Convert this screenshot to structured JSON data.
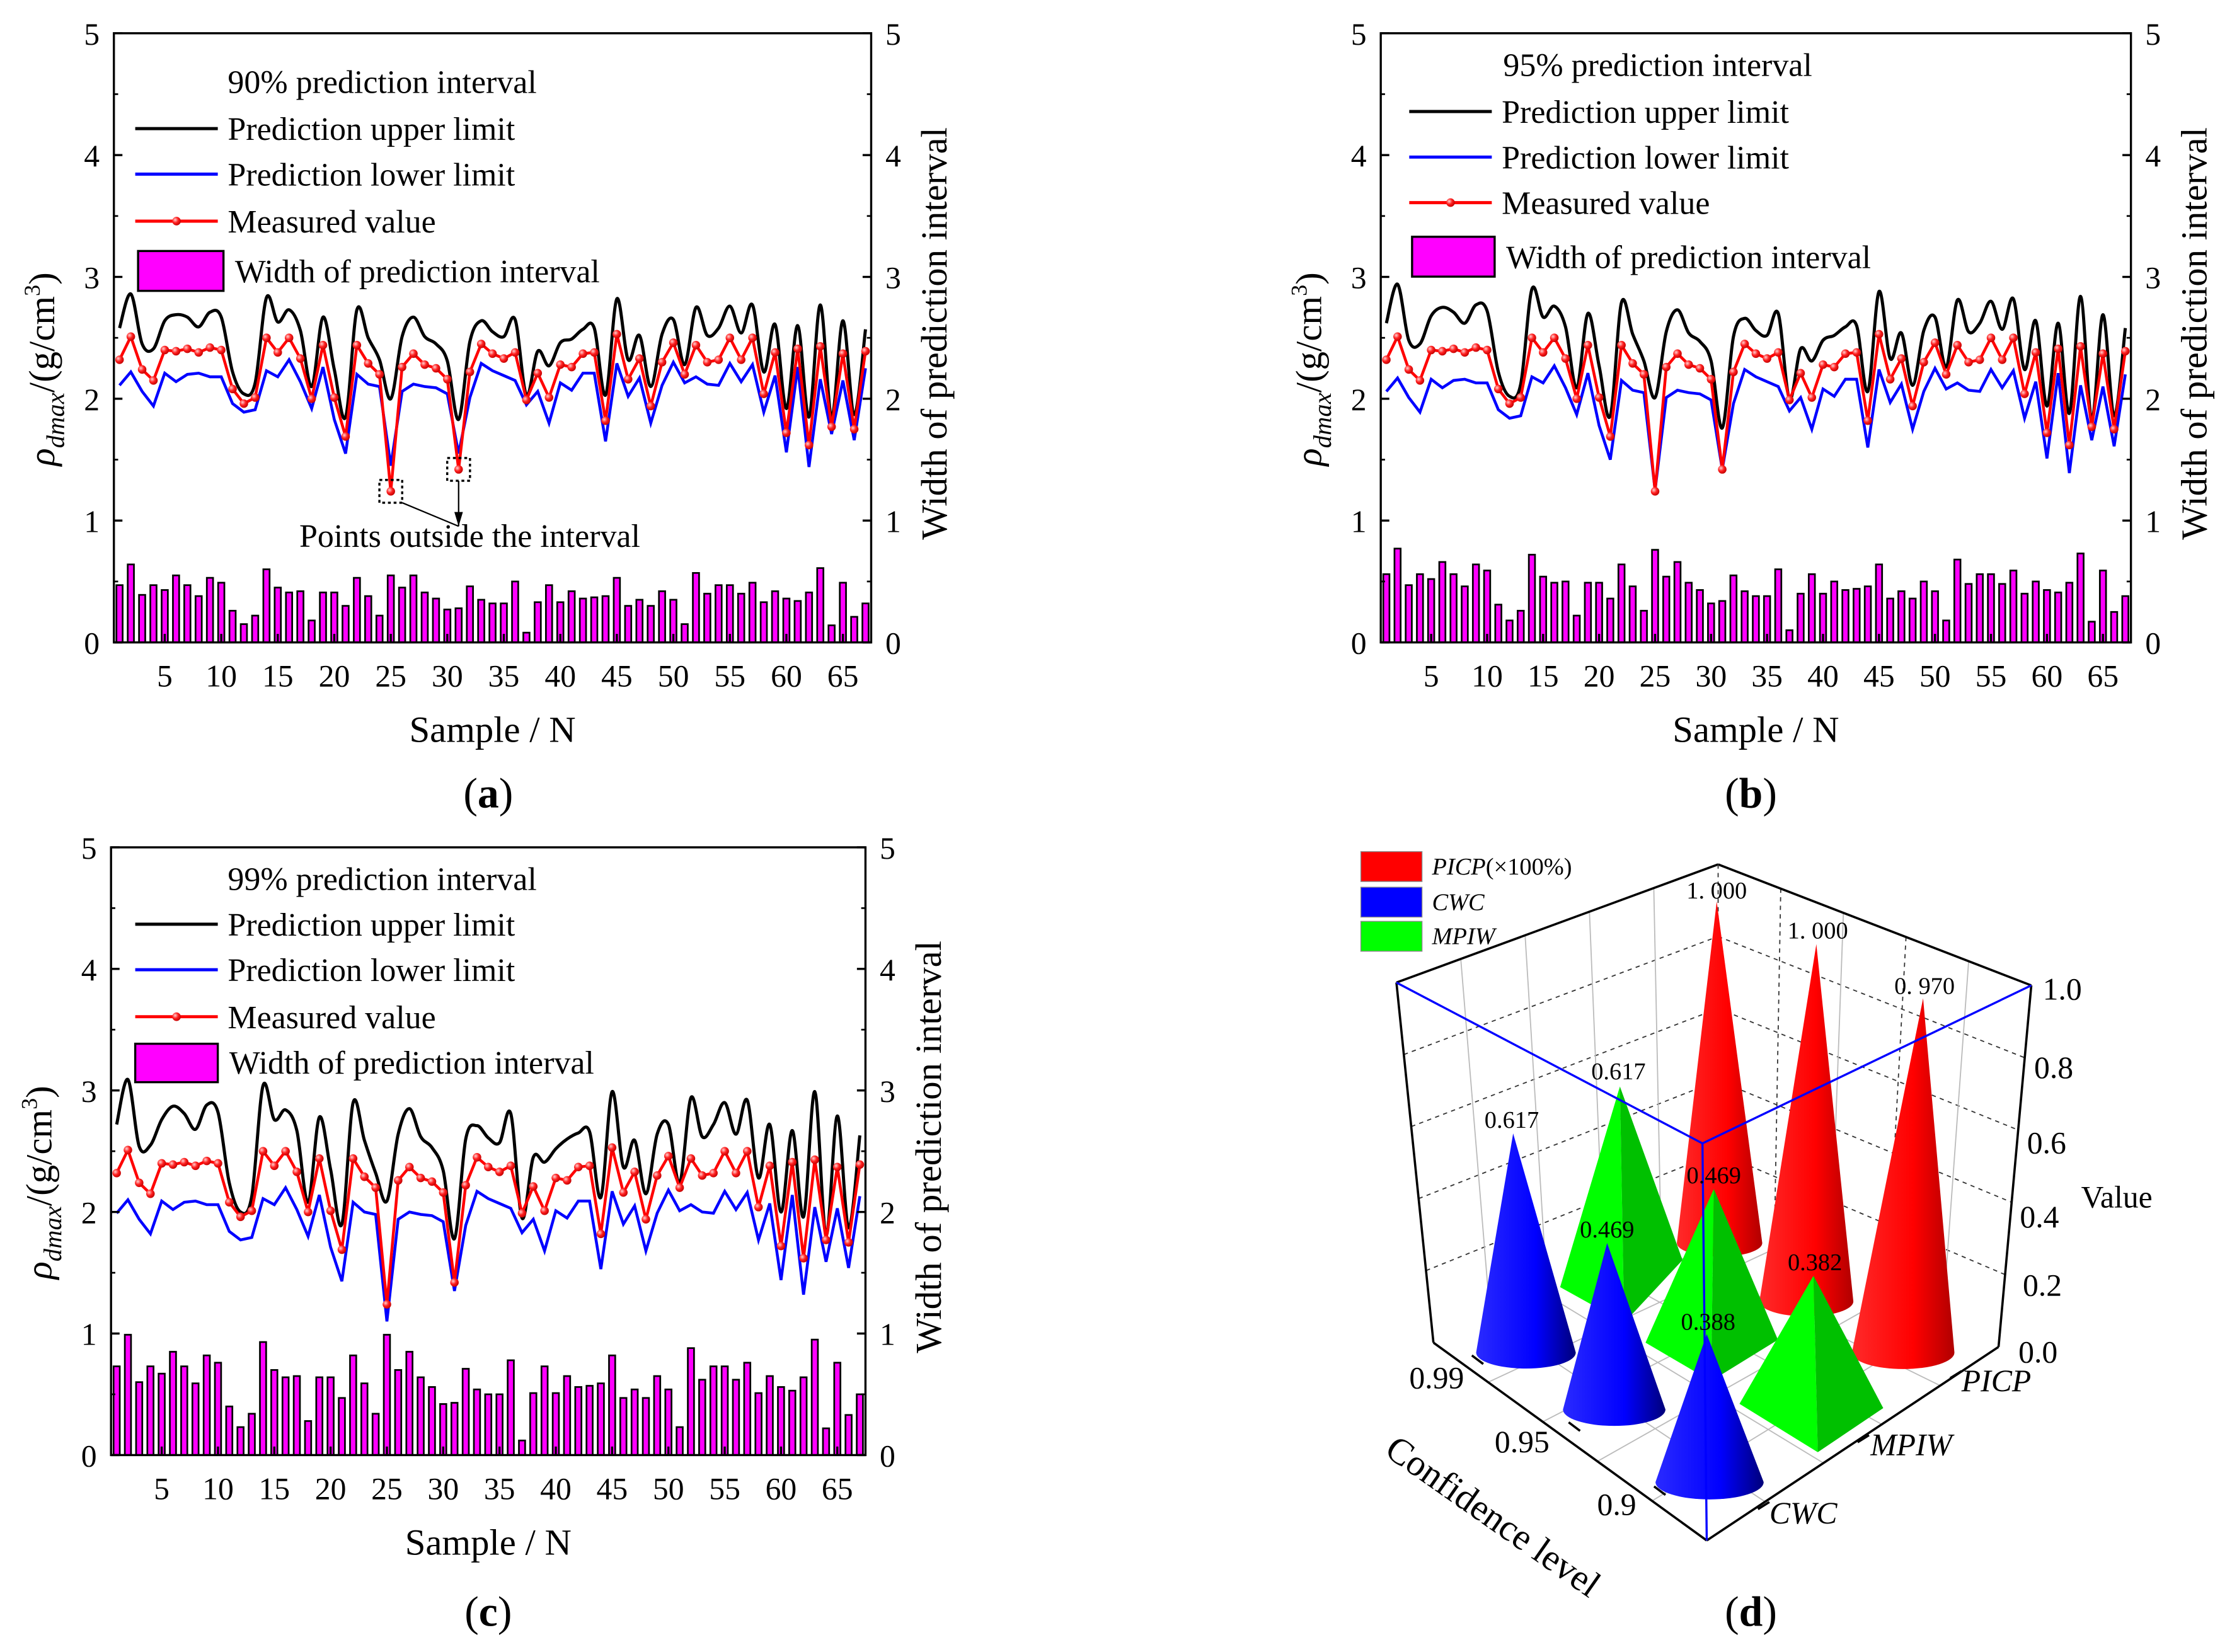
{
  "chart_data": [
    {
      "type": "line+bar",
      "caption_letter": "a",
      "legend_title": "90% prediction interval",
      "legend": [
        "Prediction upper limit",
        "Prediction lower limit",
        "Measured value",
        "Width of prediction interval"
      ],
      "xlabel": "Sample / N",
      "ylabel": {
        "symbol": "ρ",
        "sub": "dmax",
        "unit": "/(g/cm",
        "sup": "3",
        "close": ")"
      },
      "ylabel_right": "Width of prediction interval",
      "annotation": "Points outside the interval",
      "xticks": [
        5,
        10,
        15,
        20,
        25,
        30,
        35,
        40,
        45,
        50,
        55,
        60,
        65
      ],
      "yticks": [
        0,
        1,
        2,
        3,
        4,
        5
      ],
      "xlim": [
        0.5,
        67.5
      ],
      "ylim": [
        0,
        5
      ],
      "measured": [
        2.32,
        2.51,
        2.24,
        2.15,
        2.4,
        2.39,
        2.41,
        2.38,
        2.42,
        2.4,
        2.08,
        1.96,
        2.01,
        2.5,
        2.38,
        2.5,
        2.33,
        2.0,
        2.44,
        2.01,
        1.69,
        2.44,
        2.29,
        2.2,
        1.24,
        2.26,
        2.37,
        2.28,
        2.25,
        2.16,
        1.42,
        2.22,
        2.45,
        2.37,
        2.33,
        2.38,
        1.99,
        2.21,
        2.01,
        2.28,
        2.26,
        2.37,
        2.38,
        1.82,
        2.53,
        2.16,
        2.33,
        1.94,
        2.3,
        2.46,
        2.2,
        2.44,
        2.3,
        2.32,
        2.5,
        2.32,
        2.5,
        2.04,
        2.38,
        1.72,
        2.41,
        1.62,
        2.43,
        1.77,
        2.37,
        1.75,
        2.39
      ],
      "lower": [
        2.11,
        2.22,
        2.06,
        1.94,
        2.21,
        2.14,
        2.2,
        2.21,
        2.18,
        2.18,
        1.96,
        1.89,
        1.91,
        2.23,
        2.18,
        2.32,
        2.14,
        1.92,
        2.26,
        1.83,
        1.55,
        2.2,
        2.12,
        2.1,
        1.45,
        2.06,
        2.12,
        2.1,
        2.09,
        2.04,
        1.55,
        2.01,
        2.29,
        2.23,
        2.19,
        2.15,
        1.95,
        2.06,
        1.8,
        2.13,
        2.07,
        2.21,
        2.21,
        1.65,
        2.29,
        2.02,
        2.17,
        1.8,
        2.11,
        2.3,
        2.13,
        2.18,
        2.12,
        2.11,
        2.29,
        2.14,
        2.28,
        1.89,
        2.19,
        1.56,
        2.26,
        1.44,
        2.16,
        1.71,
        2.15,
        1.66,
        2.25
      ],
      "width": [
        0.47,
        0.64,
        0.39,
        0.47,
        0.43,
        0.55,
        0.47,
        0.38,
        0.53,
        0.49,
        0.26,
        0.15,
        0.22,
        0.6,
        0.45,
        0.41,
        0.42,
        0.18,
        0.41,
        0.41,
        0.3,
        0.53,
        0.38,
        0.22,
        0.55,
        0.45,
        0.55,
        0.41,
        0.36,
        0.27,
        0.28,
        0.46,
        0.35,
        0.32,
        0.32,
        0.5,
        0.08,
        0.33,
        0.47,
        0.33,
        0.42,
        0.36,
        0.37,
        0.38,
        0.53,
        0.3,
        0.35,
        0.3,
        0.42,
        0.35,
        0.15,
        0.57,
        0.4,
        0.47,
        0.47,
        0.4,
        0.49,
        0.33,
        0.42,
        0.36,
        0.34,
        0.41,
        0.61,
        0.14,
        0.49,
        0.21,
        0.32
      ]
    },
    {
      "type": "line+bar",
      "caption_letter": "b",
      "legend_title": "95% prediction interval",
      "legend": [
        "Prediction upper limit",
        "Prediction lower limit",
        "Measured value",
        "Width of prediction interval"
      ],
      "xlabel": "Sample / N",
      "ylabel": {
        "symbol": "ρ",
        "sub": "dmax",
        "unit": "/(g/cm",
        "sup": "3",
        "close": ")"
      },
      "ylabel_right": "Width of prediction interval",
      "xticks": [
        5,
        10,
        15,
        20,
        25,
        30,
        35,
        40,
        45,
        50,
        55,
        60,
        65
      ],
      "yticks": [
        0,
        1,
        2,
        3,
        4,
        5
      ],
      "xlim": [
        0.5,
        67.5
      ],
      "ylim": [
        0,
        5
      ],
      "measured": [
        2.32,
        2.51,
        2.24,
        2.15,
        2.4,
        2.39,
        2.41,
        2.38,
        2.42,
        2.4,
        2.08,
        1.96,
        2.01,
        2.5,
        2.38,
        2.5,
        2.33,
        2.0,
        2.44,
        2.01,
        1.69,
        2.44,
        2.29,
        2.2,
        1.24,
        2.26,
        2.37,
        2.28,
        2.25,
        2.16,
        1.42,
        2.22,
        2.45,
        2.37,
        2.33,
        2.38,
        1.99,
        2.21,
        2.01,
        2.28,
        2.26,
        2.37,
        2.38,
        1.82,
        2.53,
        2.16,
        2.33,
        1.94,
        2.3,
        2.46,
        2.2,
        2.44,
        2.3,
        2.32,
        2.5,
        2.32,
        2.5,
        2.04,
        2.38,
        1.72,
        2.41,
        1.62,
        2.43,
        1.77,
        2.37,
        1.75,
        2.39
      ],
      "lower": [
        2.06,
        2.17,
        2.01,
        1.89,
        2.16,
        2.09,
        2.15,
        2.16,
        2.13,
        2.13,
        1.91,
        1.84,
        1.86,
        2.18,
        2.13,
        2.27,
        2.09,
        1.87,
        2.21,
        1.78,
        1.5,
        2.15,
        2.07,
        2.05,
        1.25,
        2.01,
        2.07,
        2.05,
        2.04,
        1.99,
        1.42,
        1.96,
        2.24,
        2.18,
        2.14,
        2.1,
        1.9,
        2.01,
        1.75,
        2.08,
        2.02,
        2.16,
        2.16,
        1.6,
        2.24,
        1.97,
        2.12,
        1.75,
        2.06,
        2.25,
        2.08,
        2.13,
        2.07,
        2.06,
        2.24,
        2.09,
        2.23,
        1.84,
        2.14,
        1.51,
        2.21,
        1.39,
        2.11,
        1.66,
        2.1,
        1.61,
        2.2
      ],
      "width": [
        0.56,
        0.77,
        0.47,
        0.56,
        0.52,
        0.66,
        0.56,
        0.46,
        0.64,
        0.59,
        0.31,
        0.18,
        0.26,
        0.72,
        0.54,
        0.49,
        0.5,
        0.22,
        0.49,
        0.49,
        0.36,
        0.64,
        0.46,
        0.26,
        0.76,
        0.54,
        0.66,
        0.49,
        0.43,
        0.32,
        0.34,
        0.55,
        0.42,
        0.38,
        0.38,
        0.6,
        0.1,
        0.4,
        0.56,
        0.4,
        0.5,
        0.43,
        0.44,
        0.46,
        0.64,
        0.36,
        0.42,
        0.36,
        0.5,
        0.42,
        0.18,
        0.68,
        0.48,
        0.56,
        0.56,
        0.48,
        0.59,
        0.4,
        0.5,
        0.43,
        0.41,
        0.49,
        0.73,
        0.17,
        0.59,
        0.25,
        0.38
      ]
    },
    {
      "type": "line+bar",
      "caption_letter": "c",
      "legend_title": "99% prediction interval",
      "legend": [
        "Prediction upper limit",
        "Prediction lower limit",
        "Measured value",
        "Width of prediction interval"
      ],
      "xlabel": "Sample / N",
      "ylabel": {
        "symbol": "ρ",
        "sub": "dmax",
        "unit": "/(g/cm",
        "sup": "3",
        "close": ")"
      },
      "ylabel_right": "Width of prediction interval",
      "xticks": [
        5,
        10,
        15,
        20,
        25,
        30,
        35,
        40,
        45,
        50,
        55,
        60,
        65
      ],
      "yticks": [
        0,
        1,
        2,
        3,
        4,
        5
      ],
      "xlim": [
        0.5,
        67.5
      ],
      "ylim": [
        0,
        5
      ],
      "measured": [
        2.32,
        2.51,
        2.24,
        2.15,
        2.4,
        2.39,
        2.41,
        2.38,
        2.42,
        2.4,
        2.08,
        1.96,
        2.01,
        2.5,
        2.38,
        2.5,
        2.33,
        2.0,
        2.44,
        2.01,
        1.69,
        2.44,
        2.29,
        2.2,
        1.24,
        2.26,
        2.37,
        2.28,
        2.25,
        2.16,
        1.42,
        2.22,
        2.45,
        2.37,
        2.33,
        2.38,
        1.99,
        2.21,
        2.01,
        2.28,
        2.26,
        2.37,
        2.38,
        1.82,
        2.53,
        2.16,
        2.33,
        1.94,
        2.3,
        2.46,
        2.2,
        2.44,
        2.3,
        2.32,
        2.5,
        2.32,
        2.5,
        2.04,
        2.38,
        1.72,
        2.41,
        1.62,
        2.43,
        1.77,
        2.37,
        1.75,
        2.39
      ],
      "lower": [
        1.99,
        2.1,
        1.94,
        1.82,
        2.09,
        2.02,
        2.08,
        2.09,
        2.06,
        2.06,
        1.84,
        1.77,
        1.79,
        2.11,
        2.06,
        2.2,
        2.02,
        1.8,
        2.14,
        1.71,
        1.43,
        2.08,
        2.0,
        1.98,
        1.1,
        1.94,
        2.0,
        1.98,
        1.97,
        1.92,
        1.35,
        1.89,
        2.17,
        2.11,
        2.07,
        2.03,
        1.83,
        1.94,
        1.68,
        2.01,
        1.95,
        2.09,
        2.09,
        1.53,
        2.17,
        1.9,
        2.05,
        1.68,
        1.99,
        2.18,
        2.01,
        2.06,
        2.0,
        1.99,
        2.17,
        2.02,
        2.16,
        1.77,
        2.07,
        1.44,
        2.14,
        1.32,
        2.04,
        1.59,
        2.03,
        1.54,
        2.13
      ],
      "width": [
        0.73,
        0.99,
        0.6,
        0.73,
        0.67,
        0.85,
        0.73,
        0.59,
        0.82,
        0.76,
        0.4,
        0.23,
        0.34,
        0.93,
        0.7,
        0.64,
        0.65,
        0.28,
        0.64,
        0.64,
        0.47,
        0.82,
        0.59,
        0.34,
        0.99,
        0.7,
        0.85,
        0.64,
        0.56,
        0.42,
        0.43,
        0.71,
        0.54,
        0.5,
        0.5,
        0.78,
        0.12,
        0.51,
        0.73,
        0.51,
        0.65,
        0.56,
        0.57,
        0.59,
        0.82,
        0.47,
        0.54,
        0.47,
        0.65,
        0.54,
        0.23,
        0.88,
        0.62,
        0.73,
        0.73,
        0.62,
        0.76,
        0.51,
        0.65,
        0.56,
        0.53,
        0.64,
        0.95,
        0.22,
        0.76,
        0.33,
        0.5
      ]
    },
    {
      "type": "3d-bar",
      "caption_letter": "d",
      "legend": [
        {
          "name": "PICP",
          "suffix": "(×100%)",
          "color": "#ff0000"
        },
        {
          "name": "CWC",
          "suffix": "",
          "color": "#0000ff"
        },
        {
          "name": "MPIW",
          "suffix": "",
          "color": "#00ff00"
        }
      ],
      "x_categories": [
        "0.99",
        "0.95",
        "0.9"
      ],
      "xlabel": "Confidence level",
      "y_categories": [
        "PICP",
        "MPIW",
        "CWC"
      ],
      "zlabel": "Value",
      "zticks": [
        "0.0",
        "0.2",
        "0.4",
        "0.6",
        "0.8",
        "1.0"
      ],
      "zlim": [
        0,
        1
      ],
      "series": [
        {
          "name": "PICP",
          "values": [
            1.0,
            1.0,
            0.97
          ],
          "labels": [
            "1. 000",
            "1. 000",
            "0. 970"
          ]
        },
        {
          "name": "MPIW",
          "values": [
            0.617,
            0.469,
            0.382
          ],
          "labels": [
            "0.617",
            "0.469",
            "0.382"
          ]
        },
        {
          "name": "CWC",
          "values": [
            0.617,
            0.469,
            0.388
          ],
          "labels": [
            "0.617",
            "0.469",
            "0.388"
          ]
        }
      ]
    }
  ],
  "colors": {
    "upper": "#000000",
    "lower": "#0000ff",
    "measured": "#ff0000",
    "bar": "#ff00ff"
  }
}
